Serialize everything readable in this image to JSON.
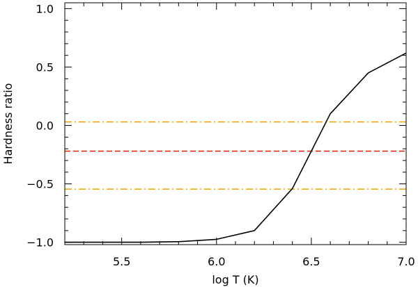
{
  "chart_data": {
    "type": "line",
    "xlabel": "log T (K)",
    "ylabel": "Hardness ratio",
    "xlim": [
      5.2,
      7.0
    ],
    "ylim": [
      -1.02,
      1.05
    ],
    "x_ticks": [
      5.5,
      6.0,
      6.5,
      7.0
    ],
    "x_tick_labels": [
      "5.5",
      "6.0",
      "6.5",
      "7.0"
    ],
    "y_ticks": [
      -1.0,
      -0.5,
      0.0,
      0.5,
      1.0
    ],
    "y_tick_labels": [
      "−1.0",
      "−0.5",
      "0.0",
      "0.5",
      "1.0"
    ],
    "x_minor_step": 0.1,
    "y_minor_step": 0.1,
    "grid": false,
    "series": [
      {
        "x": [
          5.2,
          5.4,
          5.6,
          5.8,
          6.0,
          6.2,
          6.4,
          6.6,
          6.8,
          7.0
        ],
        "values": [
          -1.0,
          -1.0,
          -1.0,
          -0.995,
          -0.975,
          -0.9,
          -0.54,
          0.1,
          0.45,
          0.62
        ],
        "color": "#000000",
        "style": "solid"
      }
    ],
    "reference_lines": [
      {
        "y": 0.03,
        "color": "#f0a000",
        "style": "dash-dot"
      },
      {
        "y": -0.22,
        "color": "#e02000",
        "style": "dashed"
      },
      {
        "y": -0.545,
        "color": "#f0a000",
        "style": "dash-dot"
      }
    ]
  }
}
